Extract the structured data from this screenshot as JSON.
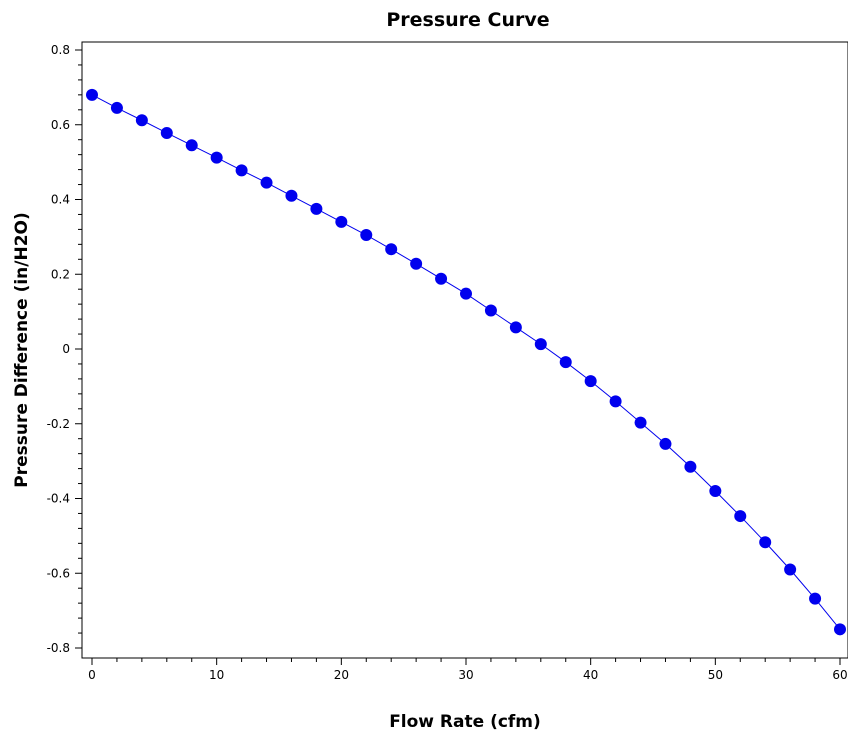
{
  "chart_data": {
    "type": "line",
    "title": "Pressure Curve",
    "xlabel": "Flow Rate (cfm)",
    "ylabel": "Pressure Difference (in/H2O)",
    "xlim": [
      0,
      60
    ],
    "ylim": [
      -0.8,
      0.8
    ],
    "xticks": [
      "0",
      "10",
      "20",
      "30",
      "40",
      "50",
      "60"
    ],
    "yticks": [
      "-0.8",
      "-0.6",
      "-0.4",
      "-0.2",
      "0",
      "0.2",
      "0.4",
      "0.6",
      "0.8"
    ],
    "grid": false,
    "legend": "none",
    "series": [
      {
        "color": "#0000ee",
        "marker": "circle",
        "x": [
          0,
          2,
          4,
          6,
          8,
          10,
          12,
          14,
          16,
          18,
          20,
          22,
          24,
          26,
          28,
          30,
          32,
          34,
          36,
          38,
          40,
          42,
          44,
          46,
          48,
          50,
          52,
          54,
          56,
          58,
          60
        ],
        "y": [
          0.68,
          0.645,
          0.612,
          0.578,
          0.545,
          0.512,
          0.478,
          0.445,
          0.41,
          0.375,
          0.34,
          0.305,
          0.267,
          0.228,
          0.188,
          0.148,
          0.103,
          0.058,
          0.013,
          -0.035,
          -0.086,
          -0.14,
          -0.197,
          -0.254,
          -0.315,
          -0.38,
          -0.447,
          -0.517,
          -0.59,
          -0.668,
          -0.75
        ]
      }
    ]
  }
}
